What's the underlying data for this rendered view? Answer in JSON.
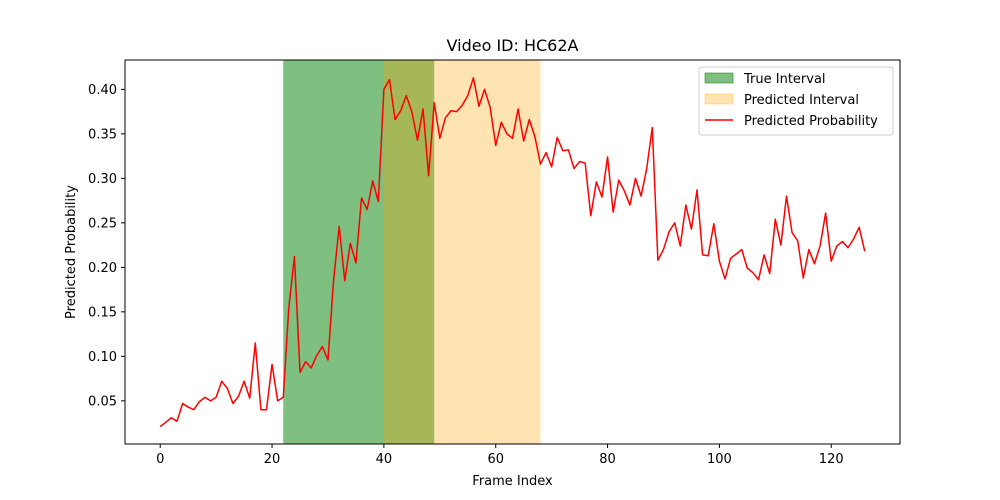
{
  "colors": {
    "true_interval": "#008000",
    "predicted_interval": "#ffa500",
    "probability_line": "#ff0000"
  },
  "chart_data": {
    "type": "line",
    "title": "Video ID: HC62A",
    "xlabel": "Frame Index",
    "ylabel": "Predicted Probability",
    "xlim": [
      -6.3,
      132.3
    ],
    "ylim": [
      0.0015,
      0.433
    ],
    "xticks": [
      0,
      20,
      40,
      60,
      80,
      100,
      120
    ],
    "yticks": [
      0.05,
      0.1,
      0.15,
      0.2,
      0.25,
      0.3,
      0.35,
      0.4
    ],
    "ytick_labels": [
      "0.05",
      "0.10",
      "0.15",
      "0.20",
      "0.25",
      "0.30",
      "0.35",
      "0.40"
    ],
    "legend": {
      "position": "top-right",
      "entries": [
        "True Interval",
        "Predicted Interval",
        "Predicted Probability"
      ]
    },
    "true_interval": {
      "name": "True Interval",
      "start": 22,
      "end": 49
    },
    "predicted_interval": {
      "name": "Predicted Interval",
      "start": 40,
      "end": 68
    },
    "series": [
      {
        "name": "Predicted Probability",
        "x": [
          0,
          1,
          2,
          3,
          4,
          5,
          6,
          7,
          8,
          9,
          10,
          11,
          12,
          13,
          14,
          15,
          16,
          17,
          18,
          19,
          20,
          21,
          22,
          23,
          24,
          25,
          26,
          27,
          28,
          29,
          30,
          31,
          32,
          33,
          34,
          35,
          36,
          37,
          38,
          39,
          40,
          41,
          42,
          43,
          44,
          45,
          46,
          47,
          48,
          49,
          50,
          51,
          52,
          53,
          54,
          55,
          56,
          57,
          58,
          59,
          60,
          61,
          62,
          63,
          64,
          65,
          66,
          67,
          68,
          69,
          70,
          71,
          72,
          73,
          74,
          75,
          76,
          77,
          78,
          79,
          80,
          81,
          82,
          83,
          84,
          85,
          86,
          87,
          88,
          89,
          90,
          91,
          92,
          93,
          94,
          95,
          96,
          97,
          98,
          99,
          100,
          101,
          102,
          103,
          104,
          105,
          106,
          107,
          108,
          109,
          110,
          111,
          112,
          113,
          114,
          115,
          116,
          117,
          118,
          119,
          120,
          121,
          122,
          123,
          124,
          125,
          126
        ],
        "values": [
          0.021,
          0.026,
          0.031,
          0.027,
          0.047,
          0.043,
          0.04,
          0.049,
          0.054,
          0.05,
          0.054,
          0.072,
          0.064,
          0.047,
          0.055,
          0.072,
          0.053,
          0.115,
          0.04,
          0.04,
          0.091,
          0.05,
          0.054,
          0.155,
          0.212,
          0.082,
          0.094,
          0.087,
          0.101,
          0.111,
          0.096,
          0.185,
          0.246,
          0.185,
          0.227,
          0.205,
          0.278,
          0.265,
          0.297,
          0.274,
          0.4,
          0.411,
          0.366,
          0.376,
          0.393,
          0.375,
          0.343,
          0.378,
          0.303,
          0.385,
          0.345,
          0.368,
          0.376,
          0.375,
          0.382,
          0.393,
          0.413,
          0.381,
          0.4,
          0.38,
          0.337,
          0.363,
          0.35,
          0.345,
          0.378,
          0.342,
          0.366,
          0.347,
          0.316,
          0.329,
          0.313,
          0.346,
          0.331,
          0.332,
          0.311,
          0.319,
          0.317,
          0.258,
          0.296,
          0.279,
          0.324,
          0.262,
          0.298,
          0.286,
          0.27,
          0.3,
          0.28,
          0.311,
          0.357,
          0.208,
          0.22,
          0.24,
          0.25,
          0.224,
          0.27,
          0.243,
          0.287,
          0.214,
          0.213,
          0.249,
          0.207,
          0.187,
          0.21,
          0.215,
          0.22,
          0.199,
          0.194,
          0.186,
          0.214,
          0.193,
          0.254,
          0.225,
          0.28,
          0.239,
          0.23,
          0.188,
          0.22,
          0.204,
          0.224,
          0.261,
          0.207,
          0.224,
          0.229,
          0.222,
          0.232,
          0.245,
          0.218
        ]
      }
    ]
  }
}
